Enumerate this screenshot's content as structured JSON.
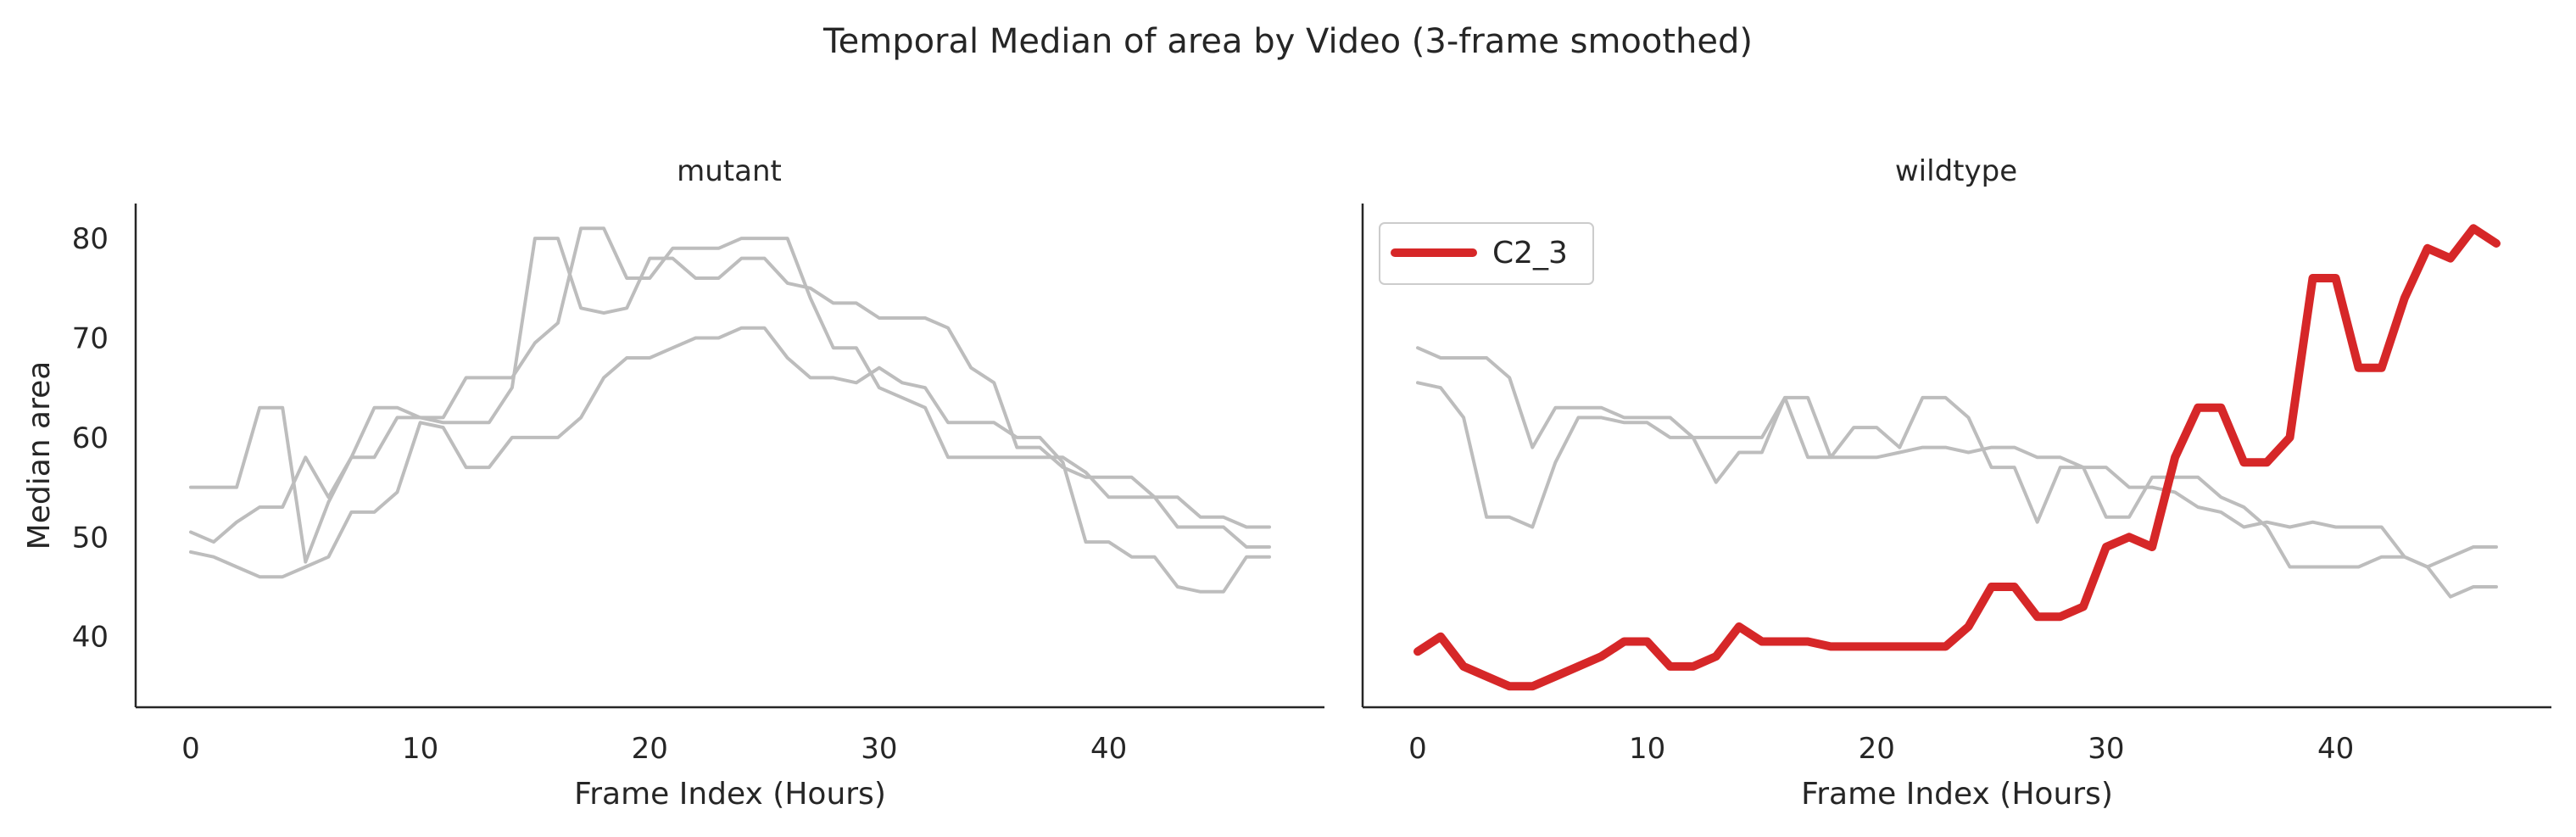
{
  "figure": {
    "title": "Temporal Median of area by Video (3-frame smoothed)"
  },
  "chart_data": [
    {
      "type": "line",
      "panel_title": "mutant",
      "xlabel": "Frame Index (Hours)",
      "ylabel": "Median area",
      "xlim": [
        -2.4,
        49.4
      ],
      "ylim": [
        32.9,
        83.5
      ],
      "xticks": [
        0,
        10,
        20,
        30,
        40
      ],
      "yticks": [
        40,
        50,
        60,
        70,
        80
      ],
      "grid": false,
      "legend": null,
      "series": [
        {
          "color": "#bdbdbd",
          "highlight": false,
          "x": [
            0,
            1,
            2,
            3,
            4,
            5,
            6,
            7,
            8,
            9,
            10,
            11,
            12,
            13,
            14,
            15,
            16,
            17,
            18,
            19,
            20,
            21,
            22,
            23,
            24,
            25,
            26,
            27,
            28,
            29,
            30,
            31,
            32,
            33,
            34,
            35,
            36,
            37,
            38,
            39,
            40,
            41,
            42,
            43,
            44,
            45,
            46,
            47
          ],
          "values": [
            55,
            55,
            55,
            63,
            63,
            47.5,
            53.5,
            58,
            58,
            62,
            62,
            61.5,
            61.5,
            61.5,
            65,
            80,
            80,
            73,
            72.5,
            73,
            78,
            78,
            76,
            76,
            78,
            78,
            75.5,
            75,
            73.5,
            73.5,
            72,
            72,
            72,
            71,
            67,
            65.5,
            59,
            59,
            57,
            56,
            56,
            56,
            54,
            54,
            52,
            52,
            51,
            51
          ]
        },
        {
          "color": "#bdbdbd",
          "highlight": false,
          "x": [
            0,
            1,
            2,
            3,
            4,
            5,
            6,
            7,
            8,
            9,
            10,
            11,
            12,
            13,
            14,
            15,
            16,
            17,
            18,
            19,
            20,
            21,
            22,
            23,
            24,
            25,
            26,
            27,
            28,
            29,
            30,
            31,
            32,
            33,
            34,
            35,
            36,
            37,
            38,
            39,
            40,
            41,
            42,
            43,
            44,
            45,
            46,
            47
          ],
          "values": [
            50.5,
            49.5,
            51.5,
            53,
            53,
            58,
            54,
            58,
            63,
            63,
            62,
            62,
            66,
            66,
            66,
            69.5,
            71.5,
            81,
            81,
            76,
            76,
            79,
            79,
            79,
            80,
            80,
            80,
            74,
            69,
            69,
            65,
            64,
            63,
            58,
            58,
            58,
            58,
            58,
            58,
            56.5,
            54,
            54,
            54,
            51,
            51,
            51,
            49,
            49
          ]
        },
        {
          "color": "#bdbdbd",
          "highlight": false,
          "x": [
            0,
            1,
            2,
            3,
            4,
            5,
            6,
            7,
            8,
            9,
            10,
            11,
            12,
            13,
            14,
            15,
            16,
            17,
            18,
            19,
            20,
            21,
            22,
            23,
            24,
            25,
            26,
            27,
            28,
            29,
            30,
            31,
            32,
            33,
            34,
            35,
            36,
            37,
            38,
            39,
            40,
            41,
            42,
            43,
            44,
            45,
            46,
            47
          ],
          "values": [
            48.5,
            48,
            47,
            46,
            46,
            47,
            48,
            52.5,
            52.5,
            54.5,
            61.5,
            61,
            57,
            57,
            60,
            60,
            60,
            62,
            66,
            68,
            68,
            69,
            70,
            70,
            71,
            71,
            68,
            66,
            66,
            65.5,
            67,
            65.5,
            65,
            61.5,
            61.5,
            61.5,
            60,
            60,
            57.5,
            49.5,
            49.5,
            48,
            48,
            45,
            44.5,
            44.5,
            48,
            48
          ]
        }
      ]
    },
    {
      "type": "line",
      "panel_title": "wildtype",
      "xlabel": "Frame Index (Hours)",
      "ylabel": "",
      "xlim": [
        -2.4,
        49.4
      ],
      "ylim": [
        32.9,
        83.5
      ],
      "xticks": [
        0,
        10,
        20,
        30,
        40
      ],
      "yticks": [
        40,
        50,
        60,
        70,
        80
      ],
      "grid": false,
      "legend": "top-left",
      "series": [
        {
          "color": "#bdbdbd",
          "highlight": false,
          "x": [
            0,
            1,
            2,
            3,
            4,
            5,
            6,
            7,
            8,
            9,
            10,
            11,
            12,
            13,
            14,
            15,
            16,
            17,
            18,
            19,
            20,
            21,
            22,
            23,
            24,
            25,
            26,
            27,
            28,
            29,
            30,
            31,
            32,
            33,
            34,
            35,
            36,
            37,
            38,
            39,
            40,
            41,
            42,
            43,
            44,
            45,
            46,
            47
          ],
          "values": [
            69,
            68,
            68,
            68,
            66,
            59,
            63,
            63,
            63,
            62,
            62,
            62,
            60,
            60,
            60,
            60,
            64,
            64,
            58,
            58,
            58,
            58.5,
            59,
            59,
            58.5,
            59,
            59,
            58,
            58,
            57,
            57,
            55,
            55,
            54.5,
            53,
            52.5,
            51,
            51.5,
            51,
            51.5,
            51,
            51,
            51,
            48,
            47,
            48,
            49,
            49
          ]
        },
        {
          "color": "#bdbdbd",
          "highlight": false,
          "x": [
            0,
            1,
            2,
            3,
            4,
            5,
            6,
            7,
            8,
            9,
            10,
            11,
            12,
            13,
            14,
            15,
            16,
            17,
            18,
            19,
            20,
            21,
            22,
            23,
            24,
            25,
            26,
            27,
            28,
            29,
            30,
            31,
            32,
            33,
            34,
            35,
            36,
            37,
            38,
            39,
            40,
            41,
            42,
            43,
            44,
            45,
            46,
            47
          ],
          "values": [
            65.5,
            65,
            62,
            52,
            52,
            51,
            57.5,
            62,
            62,
            61.5,
            61.5,
            60,
            60,
            55.5,
            58.5,
            58.5,
            64,
            58,
            58,
            61,
            61,
            59,
            64,
            64,
            62,
            57,
            57,
            51.5,
            57,
            57,
            52,
            52,
            56,
            56,
            56,
            54,
            53,
            51,
            47,
            47,
            47,
            47,
            48,
            48,
            47,
            44,
            45,
            45
          ]
        },
        {
          "name": "C2_3",
          "color": "#d62728",
          "highlight": true,
          "x": [
            0,
            1,
            2,
            3,
            4,
            5,
            6,
            7,
            8,
            9,
            10,
            11,
            12,
            13,
            14,
            15,
            16,
            17,
            18,
            19,
            20,
            21,
            22,
            23,
            24,
            25,
            26,
            27,
            28,
            29,
            30,
            31,
            32,
            33,
            34,
            35,
            36,
            37,
            38,
            39,
            40,
            41,
            42,
            43,
            44,
            45,
            46,
            47
          ],
          "values": [
            38.5,
            40,
            37,
            36,
            35,
            35,
            36,
            37,
            38,
            39.5,
            39.5,
            37,
            37,
            38,
            41,
            39.5,
            39.5,
            39.5,
            39,
            39,
            39,
            39,
            39,
            39,
            41,
            45,
            45,
            42,
            42,
            43,
            49,
            50,
            49,
            58,
            63,
            63,
            57.5,
            57.5,
            60,
            76,
            76,
            67,
            67,
            74,
            79,
            78,
            81,
            79.5
          ]
        }
      ]
    }
  ]
}
